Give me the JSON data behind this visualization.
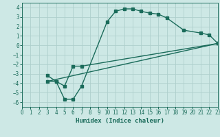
{
  "xlabel": "Humidex (Indice chaleur)",
  "background_color": "#cde8e5",
  "grid_color": "#aecfcc",
  "line_color": "#1a6b5a",
  "xlim": [
    0,
    23
  ],
  "ylim": [
    -6.5,
    4.5
  ],
  "curve1_x": [
    3,
    4,
    5,
    6,
    7,
    10,
    11,
    12,
    13,
    14,
    15,
    16,
    17,
    19,
    21,
    22,
    23
  ],
  "curve1_y": [
    -3.2,
    -3.8,
    -5.7,
    -5.7,
    -4.3,
    2.5,
    3.6,
    3.85,
    3.85,
    3.6,
    3.4,
    3.3,
    2.9,
    1.6,
    1.3,
    1.1,
    0.2
  ],
  "curve2_x": [
    3,
    4,
    5,
    6,
    7,
    23
  ],
  "curve2_y": [
    -3.8,
    -3.8,
    -4.3,
    -2.2,
    -2.2,
    0.2
  ],
  "curve3_x": [
    3,
    23
  ],
  "curve3_y": [
    -3.8,
    0.2
  ]
}
